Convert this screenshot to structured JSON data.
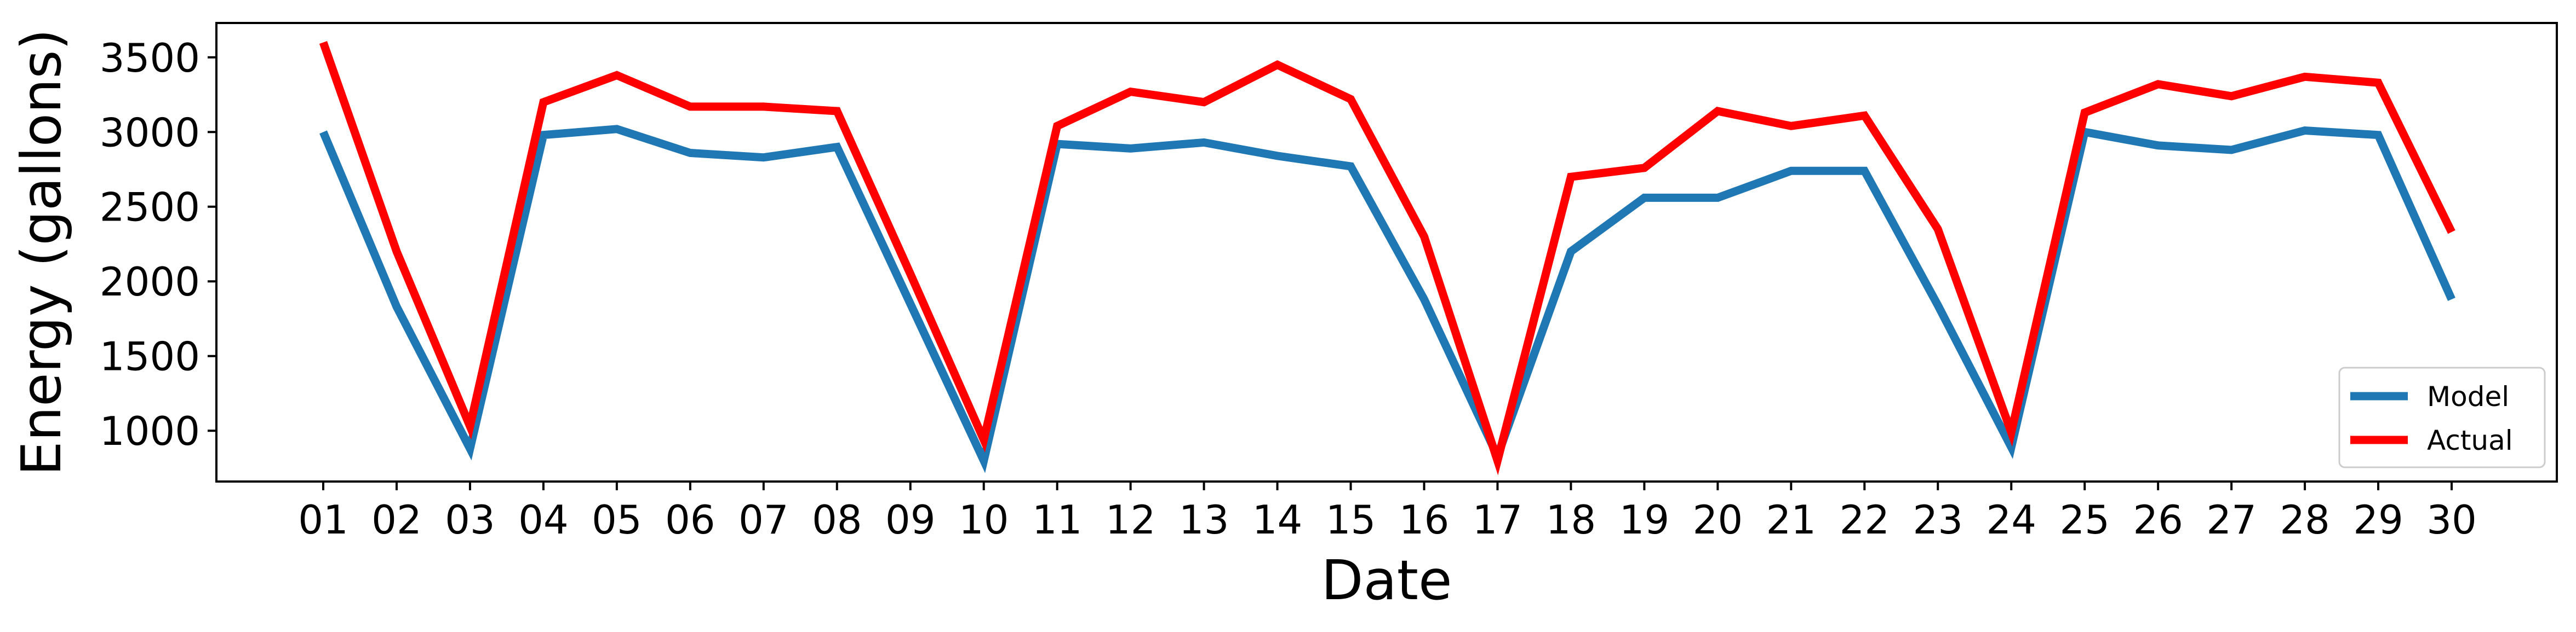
{
  "chart_data": {
    "type": "line",
    "title": "",
    "xlabel": "Date",
    "ylabel": "Energy (gallons)",
    "categories": [
      "01",
      "02",
      "03",
      "04",
      "05",
      "06",
      "07",
      "08",
      "09",
      "10",
      "11",
      "12",
      "13",
      "14",
      "15",
      "16",
      "17",
      "18",
      "19",
      "20",
      "21",
      "22",
      "23",
      "24",
      "25",
      "26",
      "27",
      "28",
      "29",
      "30"
    ],
    "ylim": [
      660,
      3730
    ],
    "yticks": [
      1000,
      1500,
      2000,
      2500,
      3000,
      3500
    ],
    "grid": false,
    "legend_position": "bottom-right",
    "series": [
      {
        "name": "Model",
        "color": "#1f77b4",
        "values": [
          3000,
          1830,
          880,
          2980,
          3020,
          2860,
          2830,
          2900,
          1850,
          800,
          2920,
          2890,
          2930,
          2840,
          2770,
          1880,
          830,
          2200,
          2560,
          2560,
          2740,
          2740,
          1840,
          890,
          3000,
          2910,
          2880,
          3010,
          2980,
          1880
        ]
      },
      {
        "name": "Actual",
        "color": "#ff0000",
        "values": [
          3600,
          2200,
          1030,
          3200,
          3380,
          3170,
          3170,
          3140,
          2050,
          940,
          3040,
          3270,
          3200,
          3450,
          3220,
          2300,
          800,
          2700,
          2760,
          3140,
          3040,
          3110,
          2350,
          990,
          3130,
          3320,
          3240,
          3370,
          3330,
          2330
        ]
      }
    ]
  }
}
